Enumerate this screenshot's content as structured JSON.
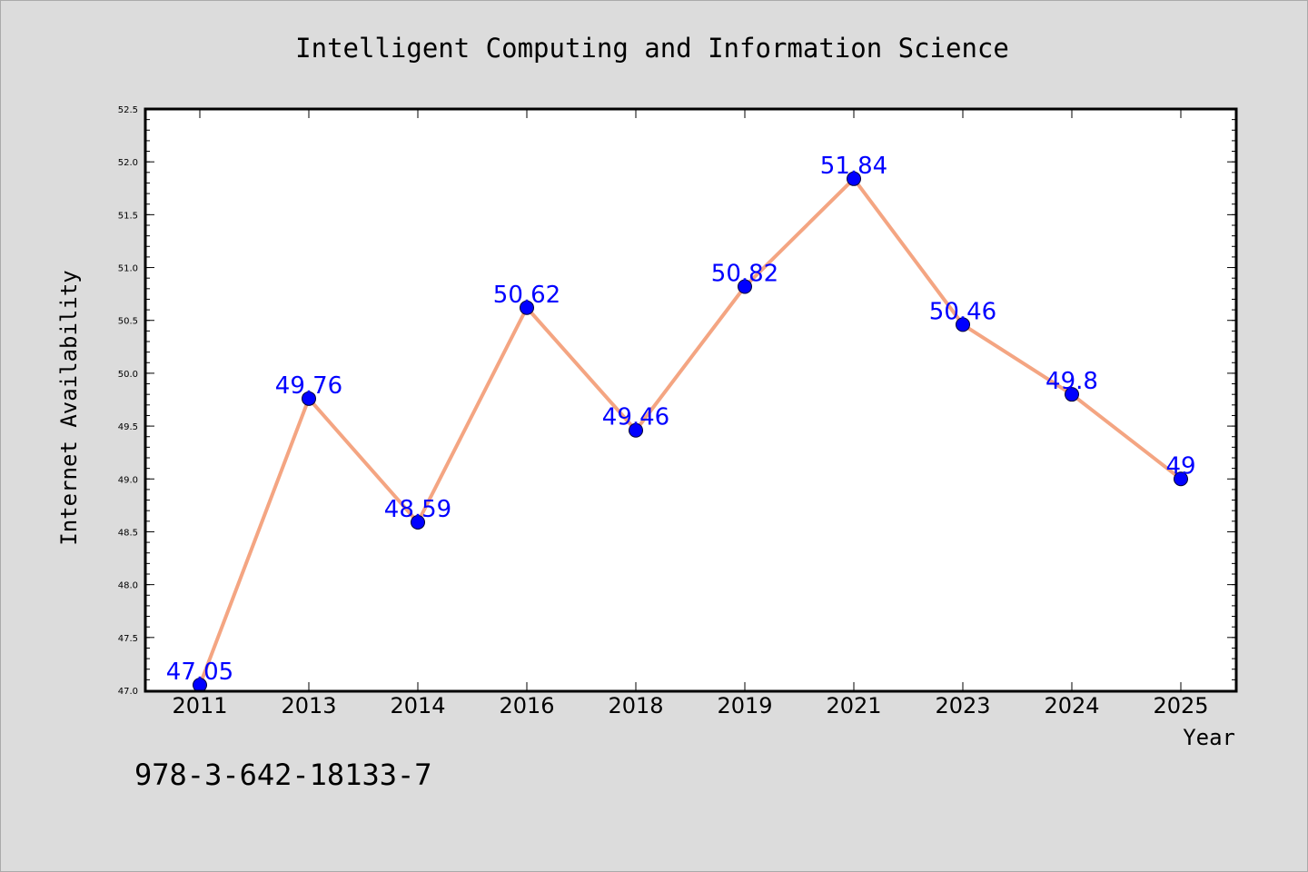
{
  "chart_data": {
    "type": "line",
    "title": "Intelligent Computing and Information Science",
    "xlabel": "Year",
    "ylabel": "Internet Availability",
    "categories": [
      "2011",
      "2013",
      "2014",
      "2016",
      "2018",
      "2019",
      "2021",
      "2023",
      "2024",
      "2025"
    ],
    "series": [
      {
        "values": [
          47.05,
          49.76,
          48.59,
          50.62,
          49.46,
          50.82,
          51.84,
          50.46,
          49.8,
          49
        ],
        "labels": [
          "47.05",
          "49.76",
          "48.59",
          "50.62",
          "49.46",
          "50.82",
          "51.84",
          "50.46",
          "49.8",
          "49"
        ],
        "line_color": "#f4a582",
        "marker_color": "#0000ff"
      }
    ],
    "ylim": [
      47.0,
      52.5
    ],
    "yticks": [
      "47.0",
      "47.5",
      "48.0",
      "48.5",
      "49.0",
      "49.5",
      "50.0",
      "50.5",
      "51.0",
      "51.5",
      "52.0",
      "52.5"
    ],
    "grid": false,
    "legend": "none"
  },
  "caption": "978-3-642-18133-7",
  "colors": {
    "background": "#dcdcdc",
    "plot_background": "#ffffff",
    "line": "#f4a582",
    "marker": "#0000ff",
    "data_label": "#0000ff"
  }
}
